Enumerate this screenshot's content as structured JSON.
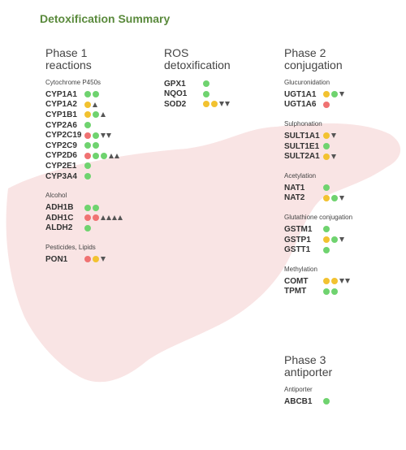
{
  "title": "Detoxification Summary",
  "colors": {
    "green": "#6fd36f",
    "yellow": "#f2c230",
    "red": "#f07272",
    "triangle": "#555555",
    "title": "#5a8a3c",
    "liver": "#f9e4e4"
  },
  "columns": [
    {
      "title_lines": [
        "Phase 1",
        "reactions"
      ],
      "groups": [
        {
          "label": "Cytochrome P450s",
          "genes": [
            {
              "name": "CYP1A1",
              "markers": [
                "green",
                "green"
              ]
            },
            {
              "name": "CYP1A2",
              "markers": [
                "yellow",
                "up"
              ]
            },
            {
              "name": "CYP1B1",
              "markers": [
                "yellow",
                "green",
                "up"
              ]
            },
            {
              "name": "CYP2A6",
              "markers": [
                "green"
              ]
            },
            {
              "name": "CYP2C19",
              "markers": [
                "red",
                "green",
                "down",
                "down"
              ]
            },
            {
              "name": "CYP2C9",
              "markers": [
                "green",
                "green"
              ]
            },
            {
              "name": "CYP2D6",
              "markers": [
                "red",
                "green",
                "green",
                "up",
                "up"
              ]
            },
            {
              "name": "CYP2E1",
              "markers": [
                "green"
              ]
            },
            {
              "name": "CYP3A4",
              "markers": [
                "green"
              ]
            }
          ]
        },
        {
          "label": "Alcohol",
          "genes": [
            {
              "name": "ADH1B",
              "markers": [
                "green",
                "green"
              ]
            },
            {
              "name": "ADH1C",
              "markers": [
                "red",
                "red",
                "up",
                "up",
                "up",
                "up"
              ]
            },
            {
              "name": "ALDH2",
              "markers": [
                "green"
              ]
            }
          ]
        },
        {
          "label": "Pesticides, Lipids",
          "genes": [
            {
              "name": "PON1",
              "markers": [
                "red",
                "yellow",
                "down"
              ]
            }
          ]
        }
      ]
    },
    {
      "title_lines": [
        "ROS",
        "detoxification"
      ],
      "groups": [
        {
          "label": "",
          "genes": [
            {
              "name": "GPX1",
              "markers": [
                "green"
              ]
            },
            {
              "name": "NQO1",
              "markers": [
                "green"
              ]
            },
            {
              "name": "SOD2",
              "markers": [
                "yellow",
                "yellow",
                "down",
                "down"
              ]
            }
          ]
        }
      ]
    },
    {
      "title_lines": [
        "Phase 2",
        "conjugation"
      ],
      "groups": [
        {
          "label": "Glucuronidation",
          "genes": [
            {
              "name": "UGT1A1",
              "markers": [
                "yellow",
                "green",
                "down"
              ]
            },
            {
              "name": "UGT1A6",
              "markers": [
                "red"
              ]
            }
          ]
        },
        {
          "label": "Sulphonation",
          "genes": [
            {
              "name": "SULT1A1",
              "markers": [
                "yellow",
                "down"
              ]
            },
            {
              "name": "SULT1E1",
              "markers": [
                "green"
              ]
            },
            {
              "name": "SULT2A1",
              "markers": [
                "yellow",
                "down"
              ]
            }
          ]
        },
        {
          "label": "Acetylation",
          "genes": [
            {
              "name": "NAT1",
              "markers": [
                "green"
              ]
            },
            {
              "name": "NAT2",
              "markers": [
                "yellow",
                "green",
                "down"
              ]
            }
          ]
        },
        {
          "label": "Glutathione conjugation",
          "genes": [
            {
              "name": "GSTM1",
              "markers": [
                "green"
              ]
            },
            {
              "name": "GSTP1",
              "markers": [
                "yellow",
                "green",
                "down"
              ]
            },
            {
              "name": "GSTT1",
              "markers": [
                "green"
              ]
            }
          ]
        },
        {
          "label": "Methylation",
          "genes": [
            {
              "name": "COMT",
              "markers": [
                "yellow",
                "yellow",
                "down",
                "down"
              ]
            },
            {
              "name": "TPMT",
              "markers": [
                "green",
                "green"
              ]
            }
          ]
        }
      ]
    },
    {
      "title_lines": [
        "Phase 3",
        "antiporter"
      ],
      "groups": [
        {
          "label": "Antiporter",
          "genes": [
            {
              "name": "ABCB1",
              "markers": [
                "green"
              ]
            }
          ]
        }
      ]
    }
  ]
}
